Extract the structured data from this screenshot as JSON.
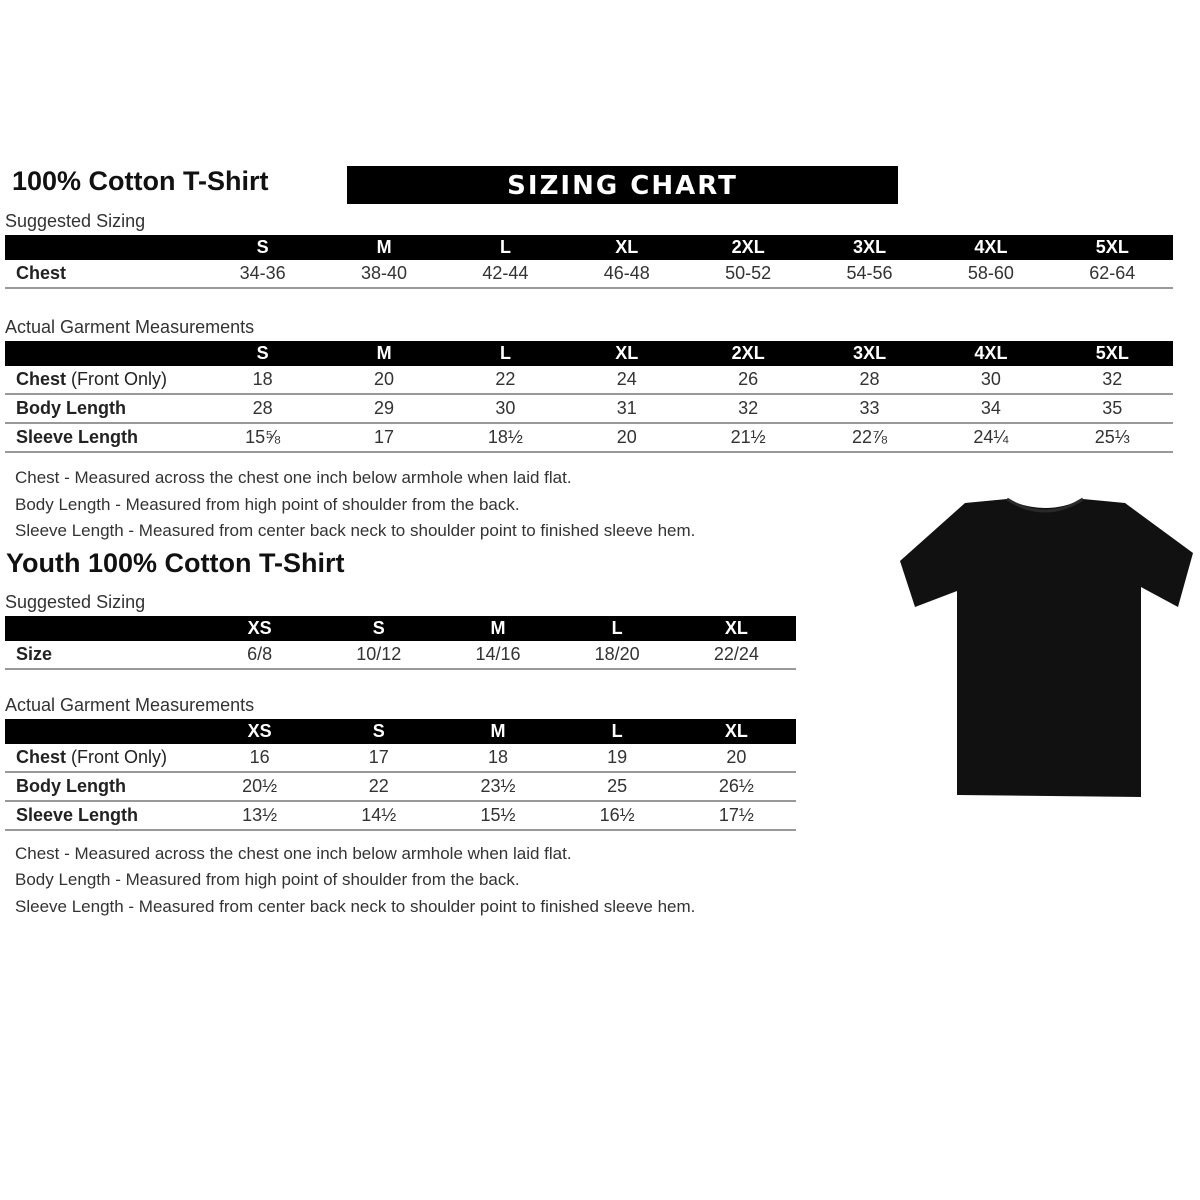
{
  "adult": {
    "title": "100% Cotton T-Shirt",
    "banner": "SIZING CHART",
    "suggested_label": "Suggested Sizing",
    "sizes": [
      "S",
      "M",
      "L",
      "XL",
      "2XL",
      "3XL",
      "4XL",
      "5XL"
    ],
    "suggested_rows": [
      {
        "label": "Chest",
        "values": [
          "34-36",
          "38-40",
          "42-44",
          "46-48",
          "50-52",
          "54-56",
          "58-60",
          "62-64"
        ]
      }
    ],
    "actual_label": "Actual Garment Measurements",
    "actual_rows": [
      {
        "label": "Chest",
        "label_note": " (Front Only)",
        "values": [
          "18",
          "20",
          "22",
          "24",
          "26",
          "28",
          "30",
          "32"
        ]
      },
      {
        "label": "Body Length",
        "values": [
          "28",
          "29",
          "30",
          "31",
          "32",
          "33",
          "34",
          "35"
        ]
      },
      {
        "label": "Sleeve Length",
        "values": [
          "15⅝",
          "17",
          "18½",
          "20",
          "21½",
          "22⅞",
          "24¼",
          "25⅓"
        ]
      }
    ],
    "notes": [
      "Chest - Measured across the chest one inch below armhole when laid flat.",
      "Body Length - Measured from high point of shoulder from the back.",
      "Sleeve Length - Measured from center back neck to shoulder point to finished sleeve hem."
    ]
  },
  "youth": {
    "title": "Youth 100% Cotton T-Shirt",
    "suggested_label": "Suggested Sizing",
    "sizes": [
      "XS",
      "S",
      "M",
      "L",
      "XL"
    ],
    "suggested_rows": [
      {
        "label": "Size",
        "values": [
          "6/8",
          "10/12",
          "14/16",
          "18/20",
          "22/24"
        ]
      }
    ],
    "actual_label": "Actual Garment Measurements",
    "actual_rows": [
      {
        "label": "Chest",
        "label_note": " (Front Only)",
        "values": [
          "16",
          "17",
          "18",
          "19",
          "20"
        ]
      },
      {
        "label": "Body Length",
        "values": [
          "20½",
          "22",
          "23½",
          "25",
          "26½"
        ]
      },
      {
        "label": "Sleeve Length",
        "values": [
          "13½",
          "14½",
          "15½",
          "16½",
          "17½"
        ]
      }
    ],
    "notes": [
      "Chest - Measured across the chest one inch below armhole when laid flat.",
      "Body Length - Measured from high point of shoulder from the back.",
      "Sleeve Length - Measured from center back neck to shoulder point to finished sleeve hem."
    ]
  },
  "shirt_color": "#111111"
}
